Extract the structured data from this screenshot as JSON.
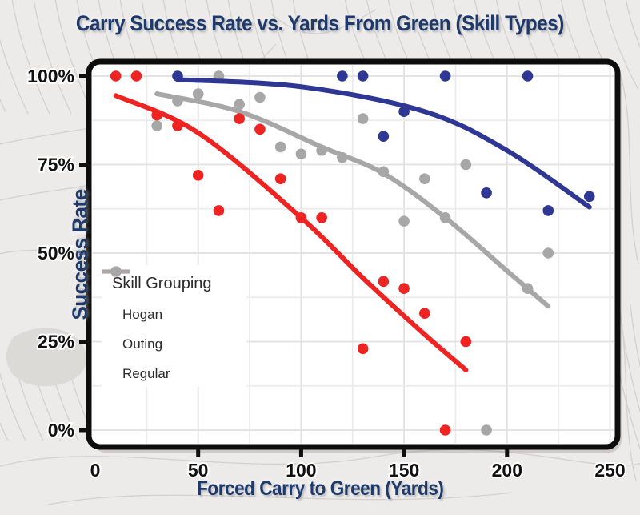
{
  "page": {
    "title": "Carry Success Rate vs. Yards From Green (Skill Types)"
  },
  "theme": {
    "background": "#edebe9",
    "contour_line": "#d3d1ce",
    "blob_fill": "#dcdad7",
    "panel_fill": "#ffffff",
    "panel_border": "#0d0d0d",
    "grid_major": "#e1e1e1",
    "grid_minor": "#ebebeb",
    "tick_text": "#101010",
    "title_navy": "#1e3a6c"
  },
  "chart_data": {
    "type": "scatter",
    "title": "Carry Success Rate vs. Yards From Green (Skill Types)",
    "xlabel": "Forced Carry to Green (Yards)",
    "ylabel": "Success Rate",
    "xlim": [
      0,
      250
    ],
    "ylim": [
      0,
      100
    ],
    "grid": true,
    "x_ticks": {
      "major": [
        0,
        50,
        100,
        150,
        200,
        250
      ],
      "minor": [
        25,
        75,
        125,
        175,
        225
      ],
      "labels": [
        "0",
        "50",
        "100",
        "150",
        "200",
        "250"
      ]
    },
    "y_ticks": {
      "major": [
        0,
        25,
        50,
        75,
        100
      ],
      "minor": [
        12.5,
        37.5,
        62.5,
        87.5
      ],
      "labels": [
        "0%",
        "25%",
        "50%",
        "75%",
        "100%"
      ]
    },
    "legend": {
      "title": "Skill Grouping",
      "position": "bottom-left"
    },
    "series": [
      {
        "name": "Regular",
        "color": "#a7a7a7",
        "points": [
          [
            30,
            86
          ],
          [
            40,
            93
          ],
          [
            50,
            95
          ],
          [
            60,
            100
          ],
          [
            70,
            92
          ],
          [
            80,
            94
          ],
          [
            90,
            80
          ],
          [
            100,
            78
          ],
          [
            110,
            79
          ],
          [
            120,
            77
          ],
          [
            130,
            88
          ],
          [
            140,
            73
          ],
          [
            150,
            59
          ],
          [
            160,
            71
          ],
          [
            170,
            60
          ],
          [
            180,
            75
          ],
          [
            190,
            0
          ],
          [
            210,
            40
          ],
          [
            220,
            50
          ]
        ],
        "trend": [
          [
            30,
            95
          ],
          [
            70,
            90
          ],
          [
            110,
            80
          ],
          [
            140,
            72.5
          ],
          [
            170,
            60
          ],
          [
            200,
            45
          ],
          [
            220,
            35
          ]
        ]
      },
      {
        "name": "Outing",
        "color": "#ee2423",
        "points": [
          [
            10,
            100
          ],
          [
            20,
            100
          ],
          [
            30,
            89
          ],
          [
            40,
            86
          ],
          [
            50,
            72
          ],
          [
            60,
            62
          ],
          [
            70,
            88
          ],
          [
            80,
            85
          ],
          [
            90,
            71
          ],
          [
            100,
            60
          ],
          [
            110,
            60
          ],
          [
            130,
            23
          ],
          [
            140,
            42
          ],
          [
            150,
            40
          ],
          [
            160,
            33
          ],
          [
            170,
            0
          ],
          [
            180,
            25
          ]
        ],
        "trend": [
          [
            10,
            94.5
          ],
          [
            50,
            84
          ],
          [
            100,
            60
          ],
          [
            130,
            43
          ],
          [
            160,
            27
          ],
          [
            180,
            17
          ]
        ]
      },
      {
        "name": "Hogan",
        "color": "#2e3794",
        "points": [
          [
            40,
            100
          ],
          [
            120,
            100
          ],
          [
            130,
            100
          ],
          [
            140,
            83
          ],
          [
            150,
            90
          ],
          [
            170,
            100
          ],
          [
            190,
            67
          ],
          [
            210,
            100
          ],
          [
            220,
            62
          ],
          [
            240,
            66
          ]
        ],
        "trend": [
          [
            40,
            99
          ],
          [
            100,
            97
          ],
          [
            160,
            90
          ],
          [
            200,
            79
          ],
          [
            240,
            63
          ]
        ]
      }
    ],
    "legend_order": [
      "Hogan",
      "Outing",
      "Regular"
    ]
  }
}
